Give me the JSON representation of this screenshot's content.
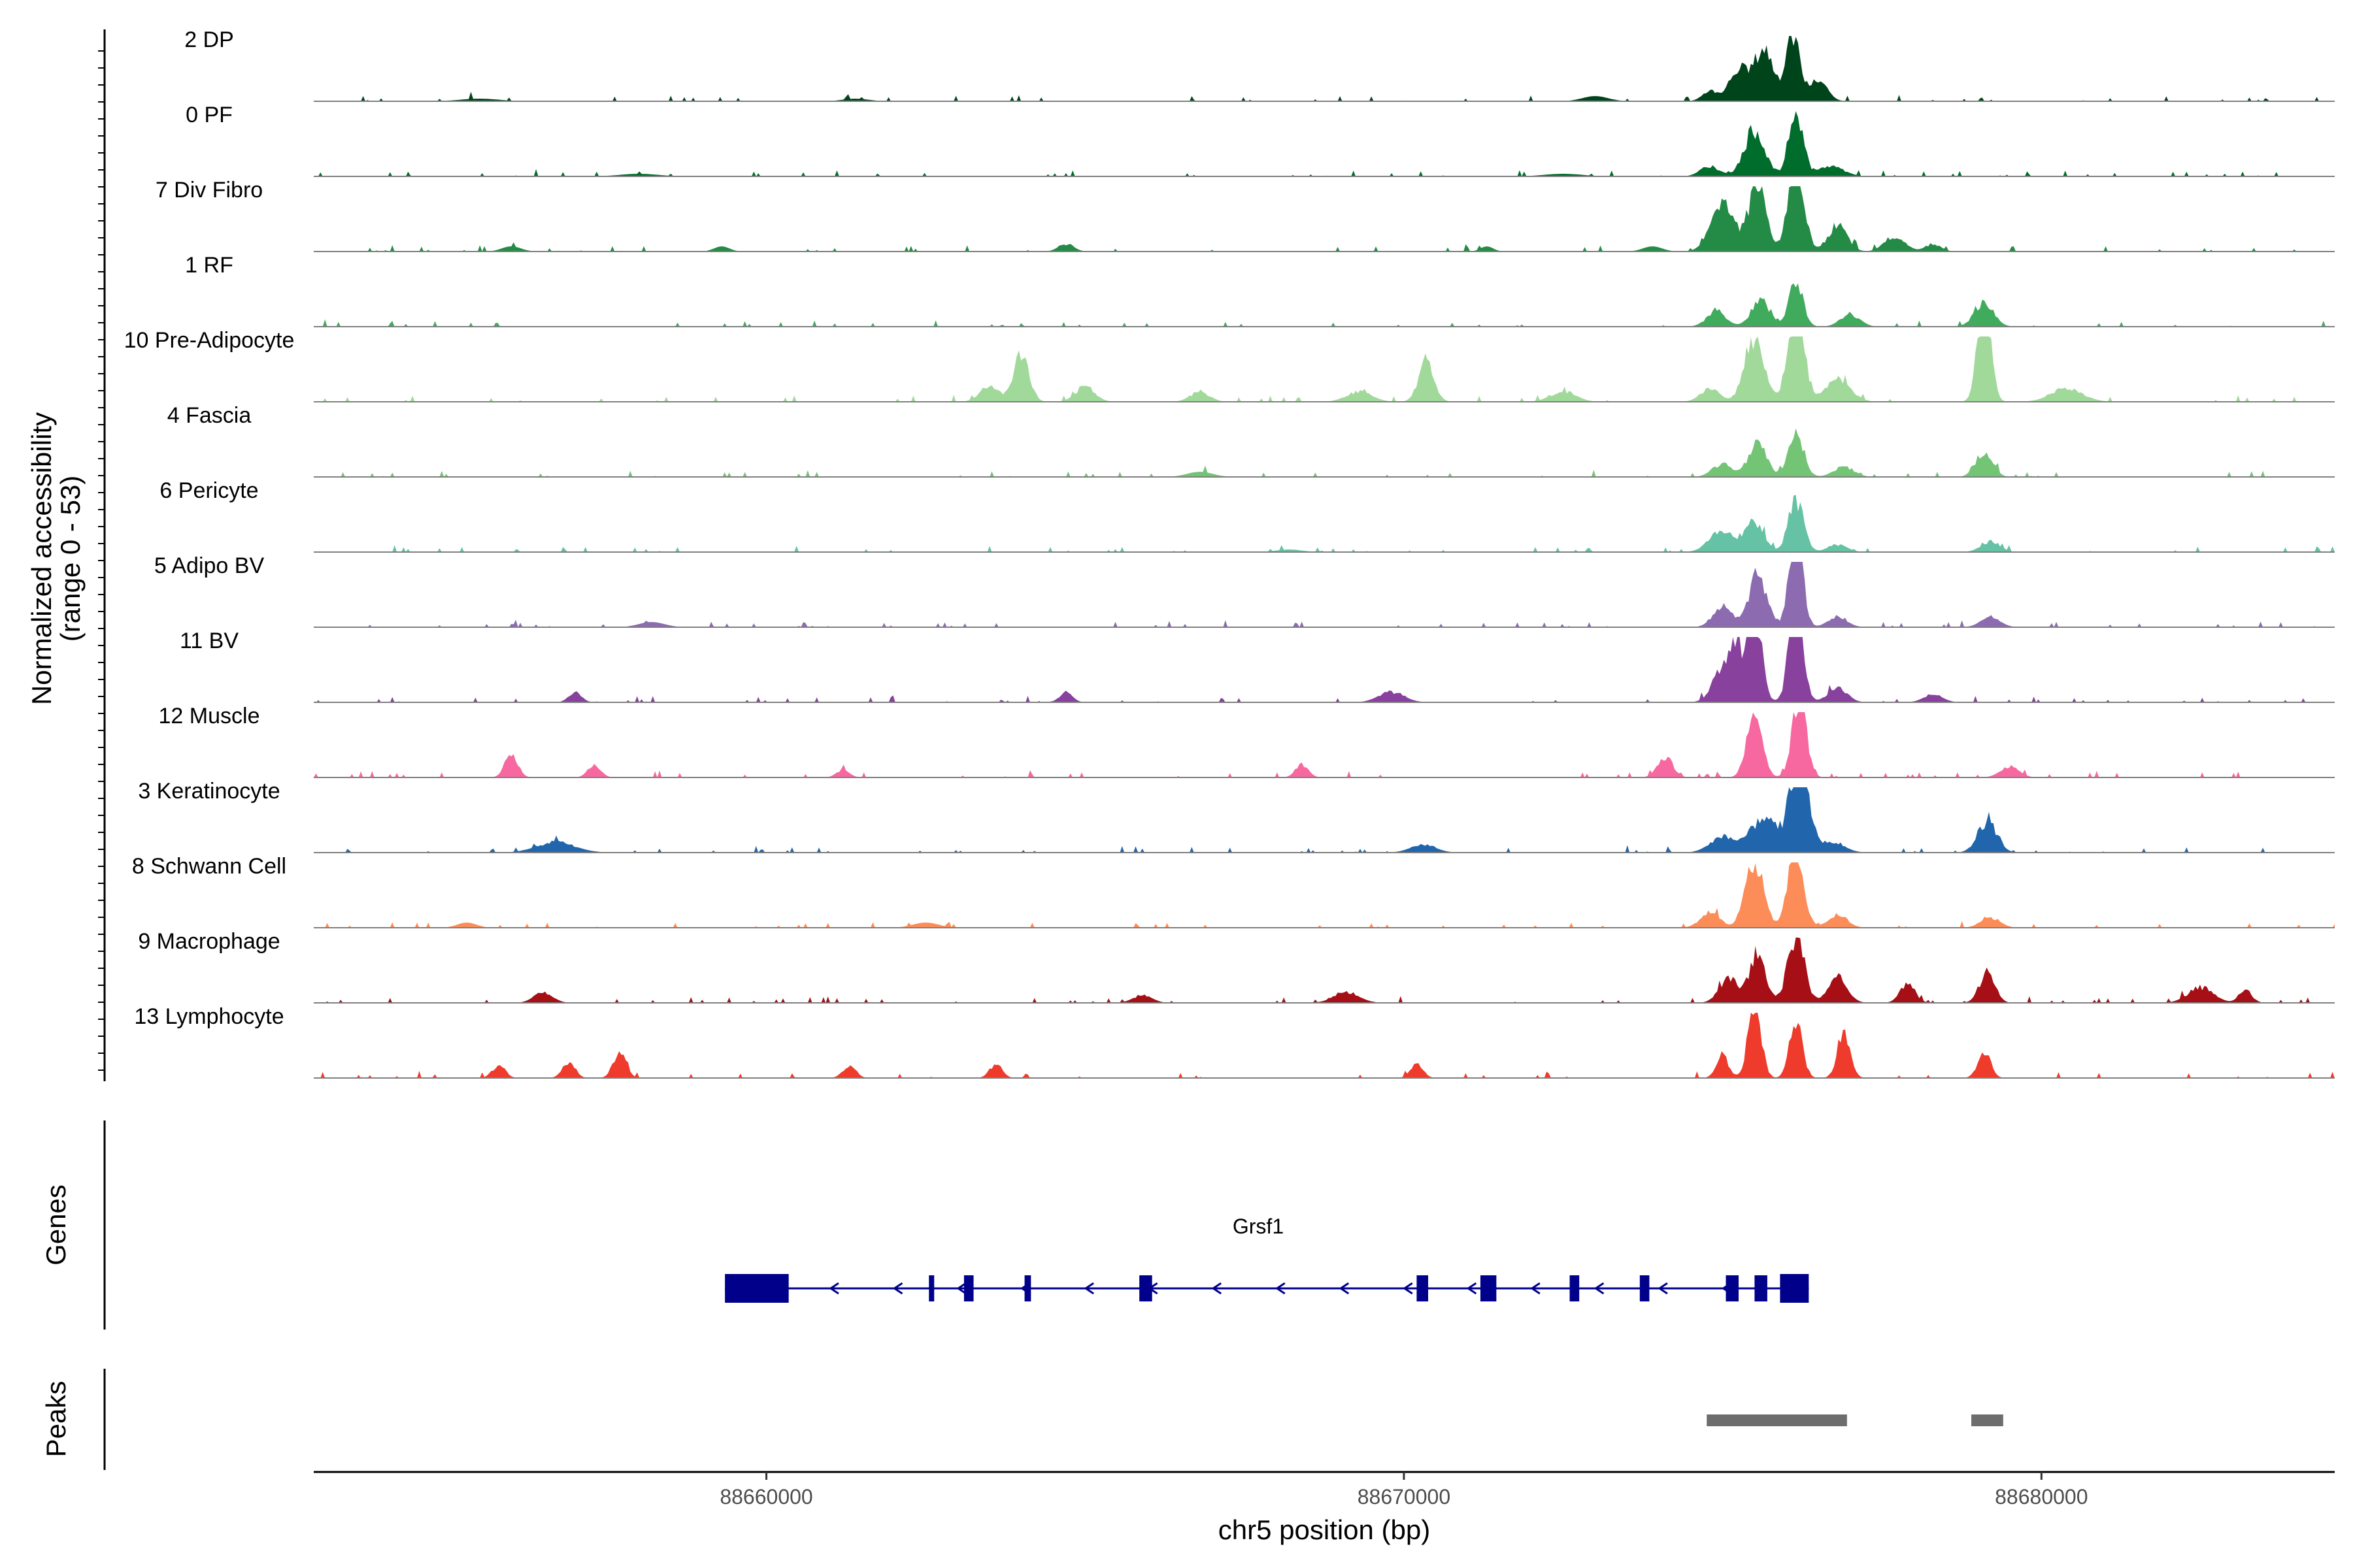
{
  "chart_data": {
    "type": "area",
    "x_label": "chr5 position (bp)",
    "y_label_line1": "Normalized accessibility",
    "y_label_line2": "(range 0 - 53)",
    "y_range": [
      0,
      53
    ],
    "x_range": [
      88652900,
      88684600
    ],
    "x_ticks": [
      88660000,
      88670000,
      88680000
    ],
    "x_tick_labels": [
      "88660000",
      "88670000",
      "88680000"
    ],
    "panels": {
      "genes_label": "Genes",
      "peaks_label": "Peaks"
    },
    "tracks": [
      {
        "name": "2 DP",
        "color": "#00441b",
        "peaks": [
          [
            88674800,
            4,
            120
          ],
          [
            88675250,
            12,
            150
          ],
          [
            88675650,
            20,
            150
          ],
          [
            88676100,
            25,
            110
          ],
          [
            88676500,
            8,
            140
          ],
          [
            88673000,
            2,
            200
          ],
          [
            88655500,
            1,
            300
          ],
          [
            88661400,
            1,
            200
          ]
        ]
      },
      {
        "name": "0 PF",
        "color": "#006d2c",
        "peaks": [
          [
            88674800,
            4,
            150
          ],
          [
            88675500,
            18,
            160
          ],
          [
            88676150,
            26,
            110
          ],
          [
            88676700,
            4,
            200
          ],
          [
            88672500,
            1,
            300
          ],
          [
            88658000,
            1,
            300
          ]
        ]
      },
      {
        "name": "7 Div Fibro",
        "color": "#238b45",
        "peaks": [
          [
            88675000,
            20,
            180
          ],
          [
            88675550,
            28,
            130
          ],
          [
            88676150,
            36,
            120
          ],
          [
            88676800,
            10,
            150
          ],
          [
            88677700,
            6,
            160
          ],
          [
            88678300,
            3,
            120
          ],
          [
            88664700,
            3,
            120
          ],
          [
            88659300,
            2,
            120
          ],
          [
            88656000,
            2,
            150
          ],
          [
            88671300,
            2,
            100
          ],
          [
            88673900,
            2,
            150
          ]
        ]
      },
      {
        "name": "1 RF",
        "color": "#41ab5d",
        "peaks": [
          [
            88674900,
            6,
            150
          ],
          [
            88675600,
            10,
            150
          ],
          [
            88676150,
            17,
            110
          ],
          [
            88677000,
            5,
            150
          ],
          [
            88679100,
            9,
            150
          ]
        ]
      },
      {
        "name": "10 Pre-Adipocyte",
        "color": "#a1d99b",
        "peaks": [
          [
            88664000,
            18,
            120
          ],
          [
            88663500,
            6,
            150
          ],
          [
            88665000,
            6,
            150
          ],
          [
            88670350,
            16,
            120
          ],
          [
            88669300,
            4,
            200
          ],
          [
            88666800,
            4,
            150
          ],
          [
            88672500,
            4,
            200
          ],
          [
            88675500,
            25,
            150
          ],
          [
            88676150,
            40,
            120
          ],
          [
            88676800,
            9,
            200
          ],
          [
            88674800,
            5,
            150
          ],
          [
            88679100,
            45,
            100
          ],
          [
            88680400,
            5,
            250
          ]
        ]
      },
      {
        "name": "4 Fascia",
        "color": "#74c476",
        "peaks": [
          [
            88675000,
            5,
            160
          ],
          [
            88675550,
            14,
            140
          ],
          [
            88676150,
            17,
            120
          ],
          [
            88676900,
            4,
            160
          ],
          [
            88679100,
            10,
            130
          ],
          [
            88666800,
            2,
            200
          ]
        ]
      },
      {
        "name": "6 Pericyte",
        "color": "#66c2a4",
        "peaks": [
          [
            88675000,
            8,
            200
          ],
          [
            88675500,
            12,
            140
          ],
          [
            88676150,
            20,
            120
          ],
          [
            88676800,
            3,
            150
          ],
          [
            88679200,
            4,
            150
          ],
          [
            88668200,
            1,
            200
          ]
        ]
      },
      {
        "name": "5 Adipo BV",
        "color": "#8c6bb1",
        "peaks": [
          [
            88675000,
            8,
            150
          ],
          [
            88675550,
            20,
            140
          ],
          [
            88676150,
            44,
            100
          ],
          [
            88676800,
            4,
            150
          ],
          [
            88679200,
            4,
            150
          ],
          [
            88658200,
            2,
            200
          ]
        ]
      },
      {
        "name": "11 BV",
        "color": "#88419d",
        "peaks": [
          [
            88675000,
            12,
            160
          ],
          [
            88675500,
            36,
            110
          ],
          [
            88676150,
            38,
            110
          ],
          [
            88676800,
            6,
            150
          ],
          [
            88675200,
            20,
            100
          ],
          [
            88657000,
            4,
            100
          ],
          [
            88664700,
            4,
            100
          ],
          [
            88669800,
            4,
            200
          ],
          [
            88678300,
            3,
            150
          ]
        ]
      },
      {
        "name": "12 Muscle",
        "color": "#f768a1",
        "peaks": [
          [
            88675500,
            24,
            120
          ],
          [
            88676200,
            32,
            110
          ],
          [
            88674100,
            8,
            120
          ],
          [
            88656000,
            9,
            100
          ],
          [
            88657300,
            5,
            100
          ],
          [
            88661200,
            3,
            100
          ],
          [
            88668400,
            5,
            100
          ],
          [
            88679500,
            4,
            150
          ]
        ]
      },
      {
        "name": "3 Keratinocyte",
        "color": "#2166ac",
        "peaks": [
          [
            88675000,
            6,
            200
          ],
          [
            88675650,
            14,
            200
          ],
          [
            88676200,
            40,
            140
          ],
          [
            88676700,
            4,
            200
          ],
          [
            88679150,
            12,
            150
          ],
          [
            88656700,
            4,
            300
          ],
          [
            88670300,
            3,
            200
          ]
        ]
      },
      {
        "name": "8 Schwann Cell",
        "color": "#fc8d59",
        "peaks": [
          [
            88674800,
            6,
            150
          ],
          [
            88675500,
            26,
            140
          ],
          [
            88676150,
            30,
            120
          ],
          [
            88676800,
            5,
            150
          ],
          [
            88679200,
            4,
            150
          ],
          [
            88655300,
            2,
            150
          ],
          [
            88662500,
            2,
            200
          ]
        ]
      },
      {
        "name": "9 Macrophage",
        "color": "#a50f15",
        "peaks": [
          [
            88675100,
            10,
            150
          ],
          [
            88675550,
            20,
            120
          ],
          [
            88676150,
            26,
            130
          ],
          [
            88676800,
            10,
            150
          ],
          [
            88677900,
            7,
            120
          ],
          [
            88679150,
            12,
            120
          ],
          [
            88665900,
            3,
            150
          ],
          [
            88669100,
            4,
            200
          ],
          [
            88656500,
            4,
            150
          ],
          [
            88682500,
            6,
            200
          ],
          [
            88683200,
            5,
            100
          ]
        ]
      },
      {
        "name": "13 Lymphocyte",
        "color": "#ef3b2c",
        "peaks": [
          [
            88675500,
            30,
            100
          ],
          [
            88676150,
            22,
            100
          ],
          [
            88676900,
            18,
            100
          ],
          [
            88675000,
            8,
            100
          ],
          [
            88656900,
            6,
            100
          ],
          [
            88655800,
            5,
            100
          ],
          [
            88657700,
            10,
            100
          ],
          [
            88661300,
            5,
            100
          ],
          [
            88663600,
            5,
            100
          ],
          [
            88670200,
            5,
            100
          ],
          [
            88679100,
            10,
            100
          ]
        ]
      }
    ],
    "gene": {
      "name": "Grsf1",
      "start": 88659350,
      "end": 88676350,
      "strand": "-",
      "color": "#00008b",
      "exons": [
        [
          88659350,
          88660350
        ],
        [
          88662550,
          88662620
        ],
        [
          88663100,
          88663250
        ],
        [
          88664050,
          88664150
        ],
        [
          88665850,
          88666050
        ],
        [
          88670200,
          88670380
        ],
        [
          88671200,
          88671450
        ],
        [
          88672600,
          88672750
        ],
        [
          88673700,
          88673850
        ],
        [
          88675050,
          88675250
        ],
        [
          88675500,
          88675700
        ],
        [
          88675900,
          88676350
        ]
      ]
    },
    "peak_regions": [
      {
        "start": 88674750,
        "end": 88676950,
        "color": "#6d6d6d"
      },
      {
        "start": 88678900,
        "end": 88679400,
        "color": "#6d6d6d"
      }
    ]
  }
}
